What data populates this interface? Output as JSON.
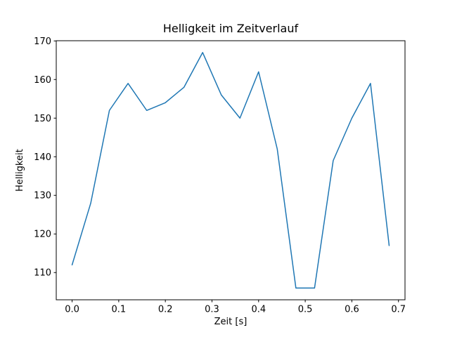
{
  "figure": {
    "background": "#ffffff",
    "title": "Helligkeit im Zeitverlauf",
    "xlabel": "Zeit [s]",
    "ylabel": "Helligkeit"
  },
  "chart_data": {
    "type": "line",
    "title": "Helligkeit im Zeitverlauf",
    "xlabel": "Zeit [s]",
    "ylabel": "Helligkeit",
    "x": [
      0.0,
      0.04,
      0.08,
      0.12,
      0.16,
      0.2,
      0.24,
      0.28,
      0.32,
      0.36,
      0.4,
      0.44,
      0.48,
      0.52,
      0.56,
      0.6,
      0.64,
      0.68
    ],
    "y": [
      112,
      128,
      152,
      159,
      152,
      154,
      158,
      167,
      156,
      150,
      162,
      142,
      106,
      106,
      139,
      150,
      159,
      117
    ],
    "xlim": [
      -0.034,
      0.714
    ],
    "ylim": [
      102.95,
      170.05
    ],
    "xticks": [
      0.0,
      0.1,
      0.2,
      0.3,
      0.4,
      0.5,
      0.6,
      0.7
    ],
    "xtick_decimals": 1,
    "yticks": [
      110,
      120,
      130,
      140,
      150,
      160,
      170
    ],
    "line_color": "#1f77b4",
    "line_width": 1.5,
    "axes_color": "#000000",
    "grid": false,
    "legend": null
  }
}
